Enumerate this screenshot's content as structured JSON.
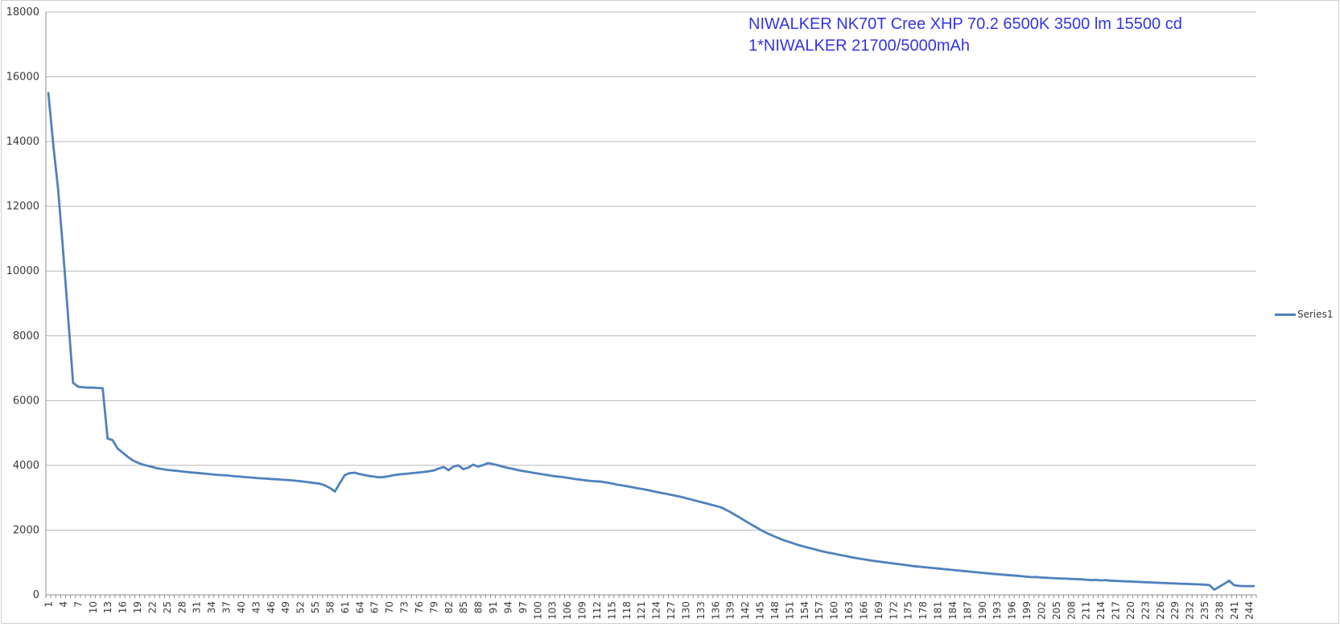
{
  "title": {
    "line1": "NIWALKER NK70T Cree XHP 70.2 6500K 3500 lm 15500 cd",
    "line2": "1*NIWALKER 21700/5000mAh",
    "color": "#3434e6"
  },
  "legend": {
    "label": "Series1"
  },
  "colors": {
    "series": "#4f81bd",
    "gridline": "#b9b9b9",
    "axis": "#8e8e8e",
    "tick_label": "#3a3a3a",
    "border": "#cfcfcf"
  },
  "chart_data": {
    "type": "line",
    "title": "NIWALKER NK70T Cree XHP 70.2 6500K 3500 lm 15500 cd 1*NIWALKER 21700/5000mAh",
    "xlabel": "",
    "ylabel": "",
    "ylim": [
      0,
      18000
    ],
    "y_ticks": [
      0,
      2000,
      4000,
      6000,
      8000,
      10000,
      12000,
      14000,
      16000,
      18000
    ],
    "grid": "horizontal",
    "legend_position": "right",
    "x_label_interval": 3,
    "x_labels": [
      1,
      4,
      7,
      10,
      13,
      16,
      19,
      22,
      25,
      28,
      31,
      34,
      37,
      40,
      43,
      46,
      49,
      52,
      55,
      58,
      61,
      64,
      67,
      70,
      73,
      76,
      79,
      82,
      85,
      88,
      91,
      94,
      97,
      100,
      103,
      106,
      109,
      112,
      115,
      118,
      121,
      124,
      127,
      130,
      133,
      136,
      139,
      142,
      145,
      148,
      151,
      154,
      157,
      160,
      163,
      166,
      169,
      172,
      175,
      178,
      181,
      184,
      187,
      190,
      193,
      196,
      199,
      202,
      205,
      208,
      211,
      214,
      217,
      220,
      223,
      226,
      229,
      232,
      235,
      238,
      241,
      244
    ],
    "series": [
      {
        "name": "Series1",
        "values": [
          15500,
          13900,
          12500,
          10600,
          8600,
          6550,
          6430,
          6410,
          6400,
          6400,
          6390,
          6380,
          4830,
          4780,
          4520,
          4400,
          4270,
          4160,
          4090,
          4030,
          3990,
          3950,
          3910,
          3885,
          3860,
          3845,
          3830,
          3810,
          3795,
          3780,
          3770,
          3755,
          3740,
          3725,
          3710,
          3700,
          3690,
          3675,
          3660,
          3650,
          3635,
          3625,
          3610,
          3600,
          3590,
          3580,
          3570,
          3560,
          3550,
          3540,
          3525,
          3510,
          3490,
          3470,
          3450,
          3430,
          3380,
          3300,
          3190,
          3450,
          3700,
          3760,
          3775,
          3730,
          3700,
          3670,
          3650,
          3630,
          3640,
          3670,
          3700,
          3720,
          3735,
          3750,
          3765,
          3780,
          3795,
          3815,
          3840,
          3900,
          3950,
          3850,
          3960,
          4000,
          3880,
          3930,
          4020,
          3960,
          4010,
          4070,
          4040,
          4000,
          3960,
          3920,
          3890,
          3855,
          3825,
          3800,
          3775,
          3750,
          3725,
          3700,
          3675,
          3655,
          3640,
          3615,
          3595,
          3570,
          3550,
          3530,
          3515,
          3505,
          3495,
          3470,
          3440,
          3410,
          3385,
          3360,
          3330,
          3300,
          3275,
          3245,
          3215,
          3180,
          3150,
          3120,
          3090,
          3060,
          3030,
          2990,
          2950,
          2910,
          2870,
          2830,
          2790,
          2750,
          2710,
          2640,
          2560,
          2470,
          2380,
          2290,
          2200,
          2110,
          2020,
          1940,
          1870,
          1800,
          1740,
          1680,
          1630,
          1580,
          1530,
          1490,
          1450,
          1410,
          1370,
          1330,
          1300,
          1270,
          1240,
          1210,
          1180,
          1150,
          1125,
          1100,
          1075,
          1050,
          1030,
          1010,
          990,
          970,
          950,
          930,
          910,
          890,
          875,
          860,
          845,
          830,
          815,
          800,
          785,
          770,
          755,
          740,
          725,
          710,
          695,
          680,
          665,
          650,
          638,
          626,
          614,
          602,
          590,
          575,
          560,
          545,
          550,
          535,
          528,
          520,
          512,
          505,
          498,
          492,
          486,
          480,
          470,
          455,
          462,
          448,
          455,
          440,
          432,
          425,
          418,
          412,
          405,
          398,
          391,
          384,
          377,
          370,
          364,
          358,
          352,
          346,
          340,
          334,
          328,
          322,
          316,
          300,
          160,
          250,
          340,
          440,
          300,
          275,
          270,
          270,
          270
        ]
      }
    ]
  }
}
